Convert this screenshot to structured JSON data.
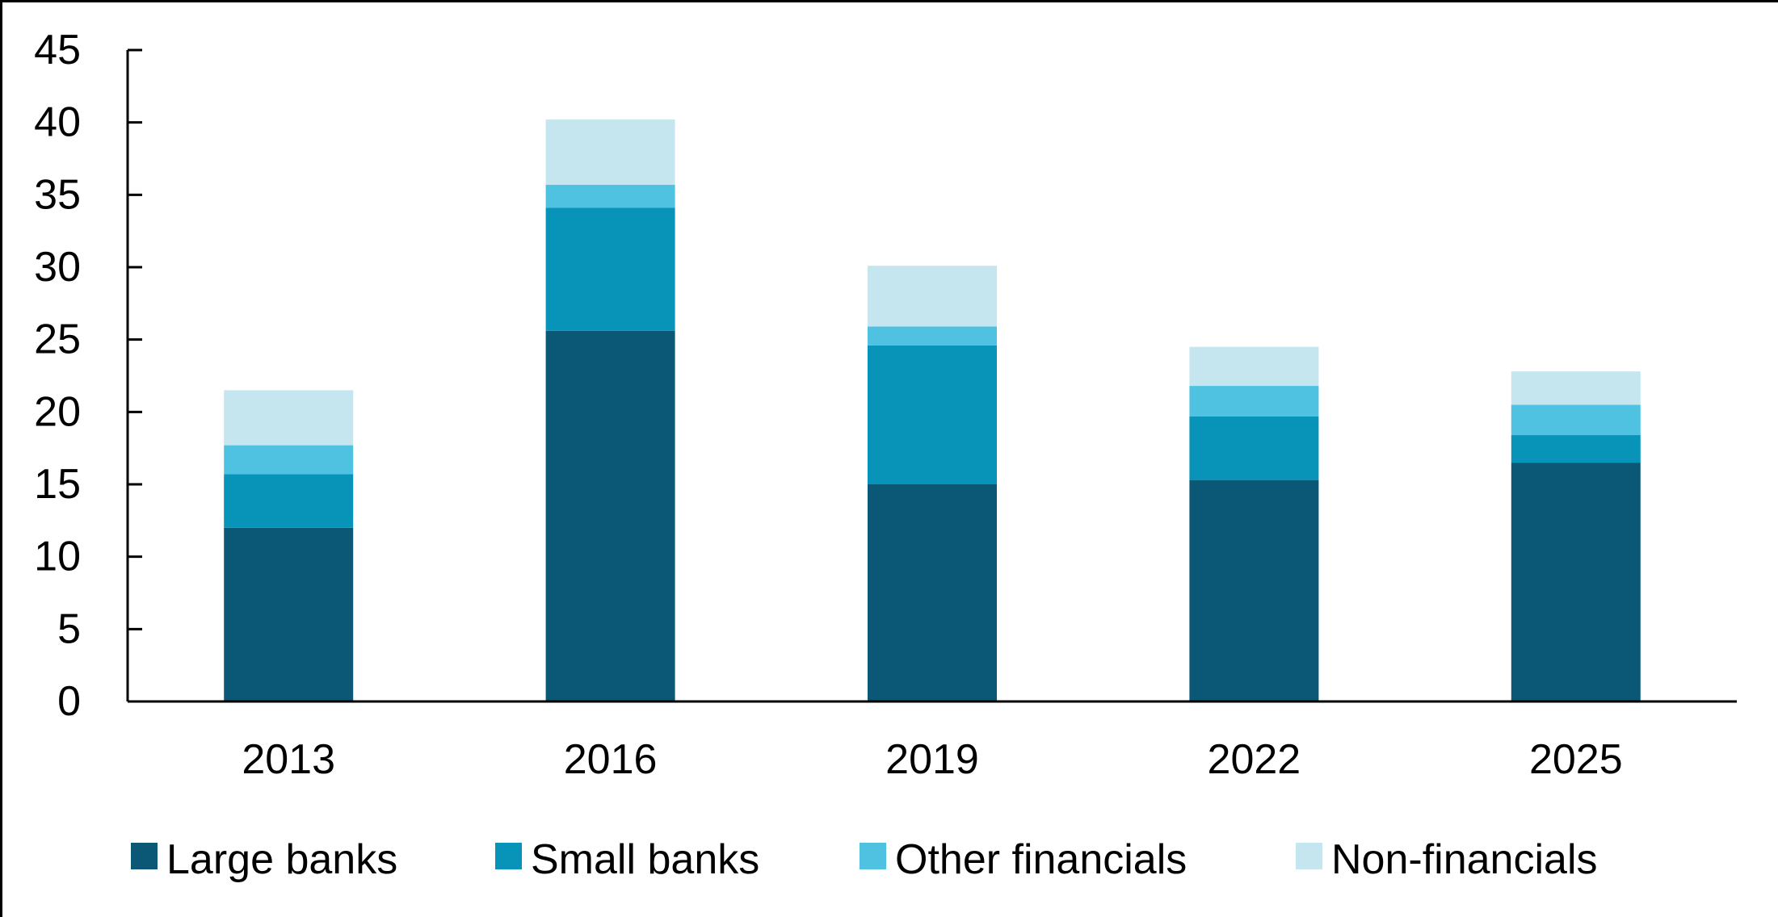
{
  "chart_data": {
    "type": "bar",
    "stacked": true,
    "title": "",
    "categories": [
      "2013",
      "2016",
      "2019",
      "2022",
      "2025"
    ],
    "series": [
      {
        "name": "Large banks",
        "color": "#0B5876",
        "values": [
          12.0,
          25.6,
          15.0,
          15.3,
          16.5
        ]
      },
      {
        "name": "Small banks",
        "color": "#0794B8",
        "values": [
          3.7,
          8.5,
          9.6,
          4.4,
          1.9
        ]
      },
      {
        "name": "Other financials",
        "color": "#4FC2E2",
        "values": [
          2.0,
          1.6,
          1.3,
          2.1,
          2.1
        ]
      },
      {
        "name": "Non-financials",
        "color": "#C6E6EF",
        "values": [
          3.8,
          4.5,
          4.2,
          2.7,
          2.3
        ]
      }
    ],
    "stack_totals": [
      21.5,
      40.2,
      30.1,
      24.5,
      22.8
    ],
    "y_axis": {
      "min": 0,
      "max": 45,
      "tick_step": 5,
      "ticks": [
        0,
        5,
        10,
        15,
        20,
        25,
        30,
        35,
        40,
        45
      ],
      "tick_style": "inside"
    },
    "x_axis": {
      "labels": [
        "2013",
        "2016",
        "2019",
        "2022",
        "2025"
      ]
    },
    "legend": {
      "position": "bottom",
      "entries": [
        "Large banks",
        "Small banks",
        "Other financials",
        "Non-financials"
      ]
    },
    "grid": false,
    "axis_color": "#000000",
    "text_color": "#000000",
    "background": "#FFFFFF"
  }
}
